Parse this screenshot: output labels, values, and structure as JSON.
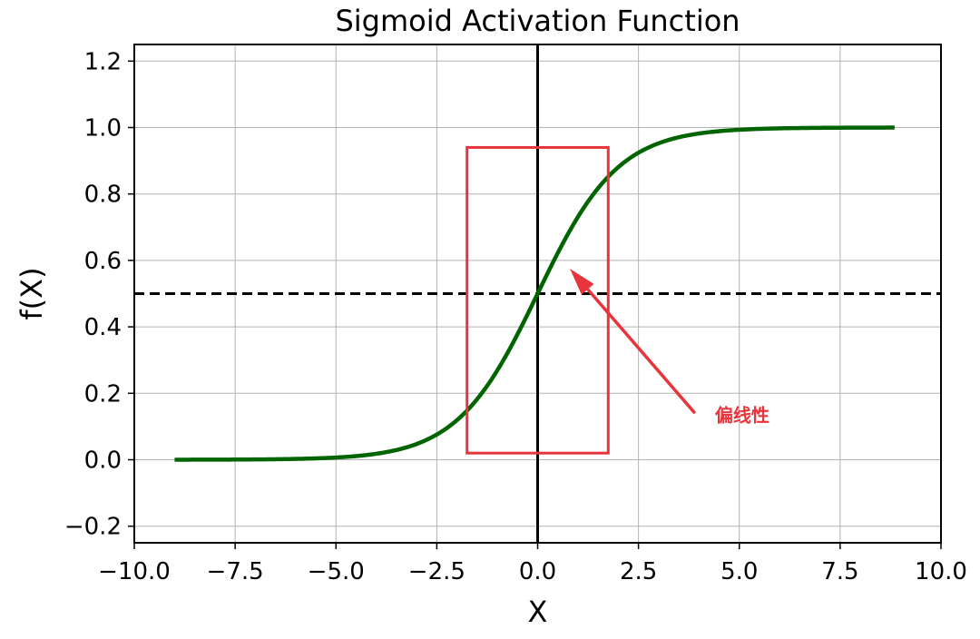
{
  "chart_data": {
    "type": "line",
    "title": "Sigmoid Activation Function",
    "xlabel": "X",
    "ylabel": "f(X)",
    "xlim": [
      -10.0,
      10.0
    ],
    "ylim": [
      -0.25,
      1.25
    ],
    "grid": true,
    "x_ticks": [
      -10.0,
      -7.5,
      -5.0,
      -2.5,
      0.0,
      2.5,
      5.0,
      7.5,
      10.0
    ],
    "x_tick_labels": [
      "−10.0",
      "−7.5",
      "−5.0",
      "−2.5",
      "0.0",
      "2.5",
      "5.0",
      "7.5",
      "10.0"
    ],
    "y_ticks": [
      -0.2,
      0.0,
      0.2,
      0.4,
      0.6,
      0.8,
      1.0,
      1.2
    ],
    "y_tick_labels": [
      "−0.2",
      "0.0",
      "0.2",
      "0.4",
      "0.6",
      "0.8",
      "1.0",
      "1.2"
    ],
    "series": [
      {
        "name": "sigmoid",
        "function": "1/(1+exp(-x))",
        "x_range": [
          -9.0,
          8.85
        ],
        "color": "#006400"
      }
    ],
    "reference_lines": [
      {
        "orientation": "horizontal",
        "value": 0.5,
        "style": "dashed",
        "color": "#000000"
      },
      {
        "orientation": "vertical",
        "value": 0.0,
        "style": "solid",
        "color": "#000000"
      }
    ],
    "highlight_box": {
      "x": [
        -1.75,
        1.75
      ],
      "y": [
        0.02,
        0.94
      ],
      "color": "#e8343b"
    },
    "annotation": {
      "text": "偏线性",
      "arrow_from": [
        3.9,
        0.14
      ],
      "arrow_to": [
        0.8,
        0.575
      ],
      "color": "#e8343b"
    }
  }
}
